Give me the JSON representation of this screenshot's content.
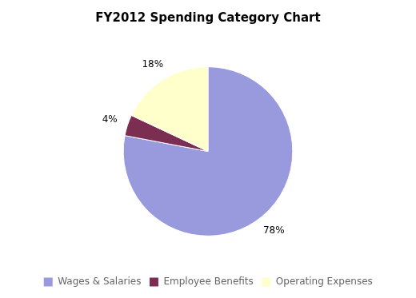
{
  "chart_data": {
    "type": "pie",
    "title": "FY2012 Spending Category Chart",
    "categories": [
      "Wages & Salaries",
      "Employee Benefits",
      "Operating Expenses"
    ],
    "values": [
      78,
      4,
      18
    ],
    "value_labels": [
      "78%",
      "4%",
      "18%"
    ],
    "colors": [
      "#9999dd",
      "#7b2d52",
      "#ffffcc"
    ],
    "data_labels": true,
    "legend": "bottom"
  }
}
